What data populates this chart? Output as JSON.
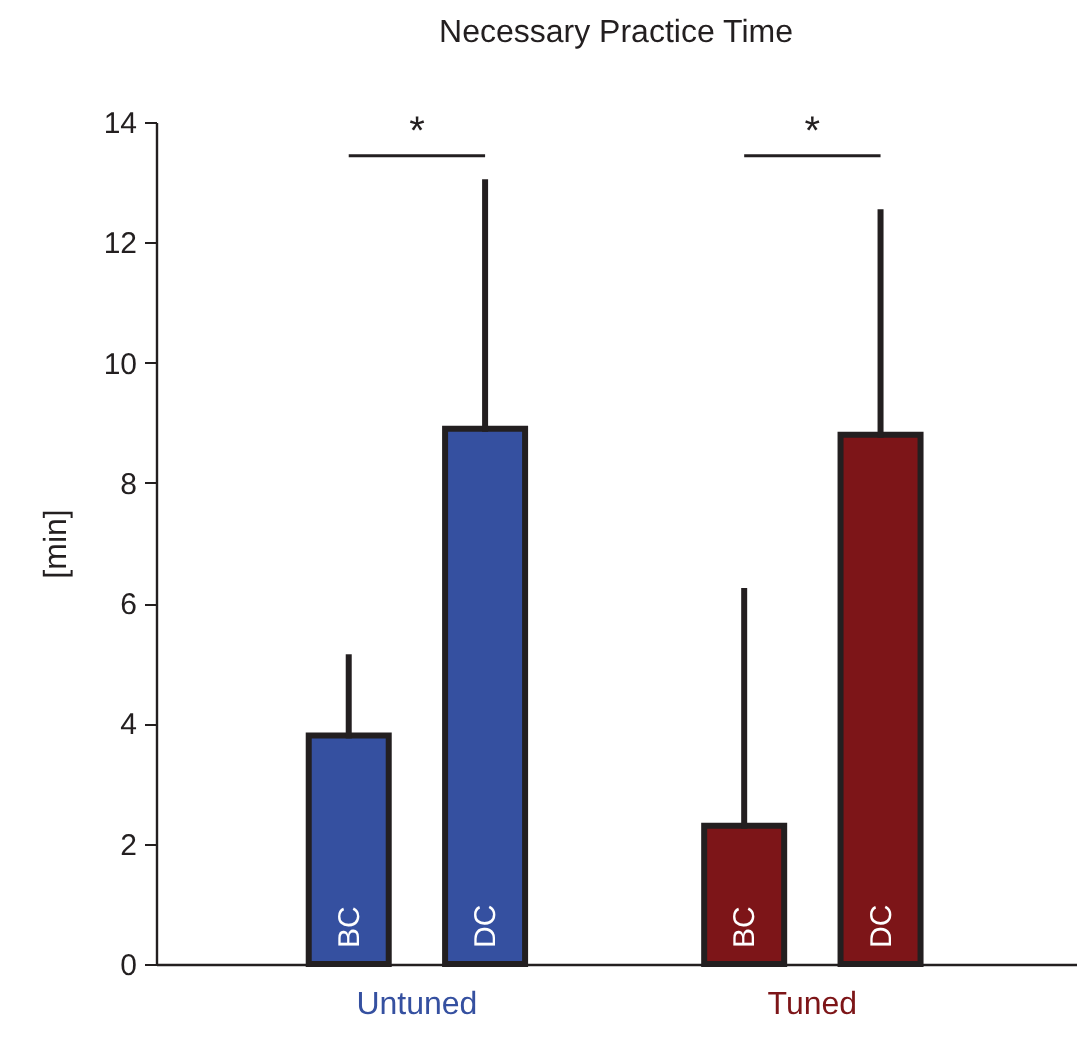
{
  "chart_data": {
    "type": "bar",
    "title": "Necessary Practice Time",
    "ylabel": "[min]",
    "categories": [
      "BC",
      "DC",
      "BC",
      "DC"
    ],
    "series": [
      {
        "name": "Untuned",
        "color": "#3550a0",
        "values": [
          3.8,
          8.9,
          null,
          null
        ],
        "errors": [
          [
            3.8,
            5.1
          ],
          [
            8.9,
            13.0
          ],
          null,
          null
        ]
      },
      {
        "name": "Tuned",
        "color": "#7d1518",
        "values": [
          null,
          null,
          2.3,
          8.8
        ],
        "errors": [
          null,
          null,
          [
            2.3,
            6.2
          ],
          [
            8.8,
            12.5
          ]
        ]
      }
    ],
    "ylim": [
      0,
      14
    ],
    "yticks": [
      0,
      2,
      4,
      6,
      8,
      10,
      12,
      14
    ],
    "grid": false,
    "legend": false,
    "annotations": [
      "*",
      "*"
    ]
  }
}
